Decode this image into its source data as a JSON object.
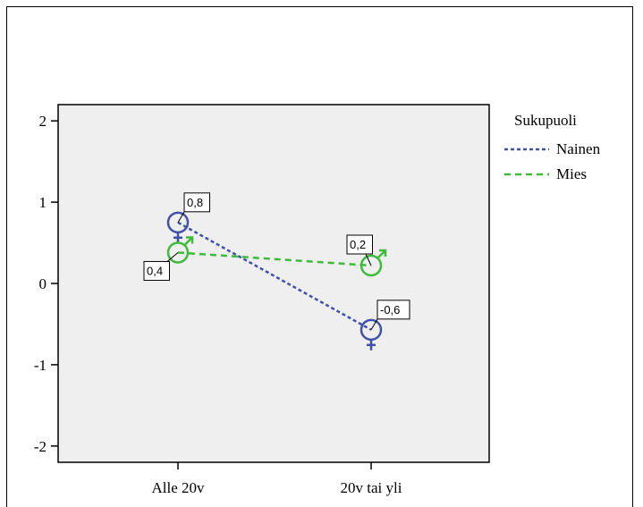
{
  "chart_data": {
    "type": "line",
    "categories": [
      "Alle 20v",
      "20v tai yli"
    ],
    "y_ticks": [
      "2",
      "1",
      "0",
      "-1",
      "-2"
    ],
    "ylim": [
      -2.2,
      2.2
    ],
    "grid": false,
    "legend": {
      "title": "Sukupuoli",
      "placement": "right"
    },
    "series": [
      {
        "name": "Nainen",
        "values": [
          0.75,
          -0.57
        ],
        "labels": [
          "0,8",
          "-0,6"
        ],
        "color": "#3f51a8",
        "marker": "female-symbol",
        "dash": "dotted"
      },
      {
        "name": "Mies",
        "values": [
          0.38,
          0.22
        ],
        "labels": [
          "0,4",
          "0,2"
        ],
        "color": "#3dbb3d",
        "marker": "male-symbol",
        "dash": "dashed"
      }
    ],
    "plot_background": "#efefef"
  }
}
